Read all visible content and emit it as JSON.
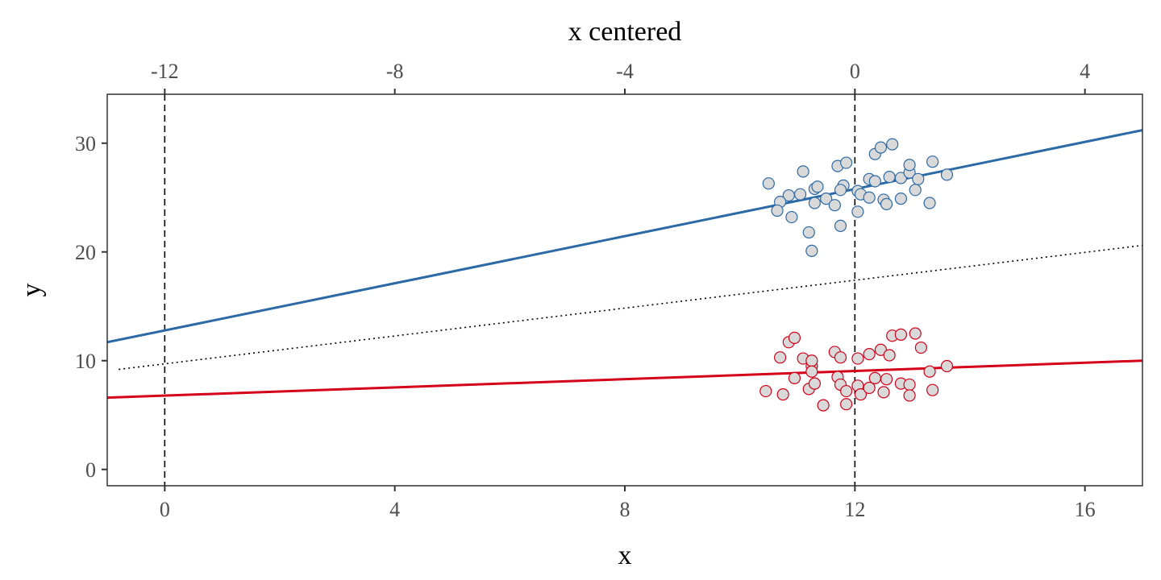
{
  "chart_data": {
    "type": "scatter",
    "title": "",
    "xlabel": "x",
    "ylabel": "y",
    "x2label": "x centered",
    "xlim": [
      -1,
      17
    ],
    "ylim": [
      -1.5,
      34.5
    ],
    "x_ticks": [
      0,
      4,
      8,
      12,
      16
    ],
    "x_tick_labels": [
      "0",
      "4",
      "8",
      "12",
      "16"
    ],
    "y_ticks": [
      0,
      10,
      20,
      30
    ],
    "y_tick_labels": [
      "0",
      "10",
      "20",
      "30"
    ],
    "x2_ticks": [
      -12,
      -8,
      -4,
      0,
      4
    ],
    "x2_tick_labels": [
      "-12",
      "-8",
      "-4",
      "0",
      "4"
    ],
    "x2_offset": 12,
    "grid": false,
    "legend": "none",
    "vlines": [
      0,
      12
    ],
    "colors": {
      "blue": "#2c6aa6",
      "red": "#d4001a",
      "point_fill": "#d9d9d9",
      "reference": "#000000",
      "panel_border": "#333333"
    },
    "lines": [
      {
        "style": "solid",
        "color": "blue",
        "x": [
          -1,
          17
        ],
        "y": [
          11.7,
          31.2
        ]
      },
      {
        "style": "dotted",
        "color": "reference",
        "x": [
          -0.8,
          17
        ],
        "y": [
          9.2,
          20.6
        ]
      },
      {
        "style": "solid",
        "color": "red",
        "x": [
          -1,
          17
        ],
        "y": [
          6.6,
          10.0
        ]
      }
    ],
    "series": [
      {
        "color": "blue",
        "points": [
          [
            10.5,
            26.3
          ],
          [
            10.85,
            25.2
          ],
          [
            10.7,
            24.6
          ],
          [
            10.9,
            23.2
          ],
          [
            10.65,
            23.8
          ],
          [
            11.1,
            27.4
          ],
          [
            11.2,
            21.8
          ],
          [
            11.05,
            25.3
          ],
          [
            11.25,
            20.1
          ],
          [
            11.3,
            25.8
          ],
          [
            11.35,
            26.0
          ],
          [
            11.3,
            24.5
          ],
          [
            11.5,
            24.9
          ],
          [
            11.65,
            24.3
          ],
          [
            11.7,
            27.9
          ],
          [
            11.85,
            28.2
          ],
          [
            11.8,
            26.1
          ],
          [
            11.75,
            25.7
          ],
          [
            11.75,
            22.4
          ],
          [
            12.05,
            23.7
          ],
          [
            12.05,
            25.6
          ],
          [
            12.1,
            25.3
          ],
          [
            12.25,
            26.7
          ],
          [
            12.25,
            25.0
          ],
          [
            12.35,
            29.0
          ],
          [
            12.35,
            26.5
          ],
          [
            12.45,
            29.6
          ],
          [
            12.5,
            24.8
          ],
          [
            12.55,
            24.4
          ],
          [
            12.6,
            26.9
          ],
          [
            12.65,
            29.9
          ],
          [
            12.8,
            26.8
          ],
          [
            12.8,
            24.9
          ],
          [
            12.95,
            27.3
          ],
          [
            12.95,
            28.0
          ],
          [
            13.05,
            25.7
          ],
          [
            13.1,
            26.7
          ],
          [
            13.3,
            24.5
          ],
          [
            13.35,
            28.3
          ],
          [
            13.6,
            27.1
          ]
        ]
      },
      {
        "color": "red",
        "points": [
          [
            10.45,
            7.2
          ],
          [
            10.75,
            6.9
          ],
          [
            10.7,
            10.3
          ],
          [
            10.85,
            11.7
          ],
          [
            10.95,
            12.1
          ],
          [
            10.95,
            8.4
          ],
          [
            11.1,
            10.2
          ],
          [
            11.2,
            7.4
          ],
          [
            11.25,
            9.5
          ],
          [
            11.25,
            10.0
          ],
          [
            11.25,
            9.0
          ],
          [
            11.3,
            7.9
          ],
          [
            11.45,
            5.9
          ],
          [
            11.65,
            10.8
          ],
          [
            11.7,
            8.5
          ],
          [
            11.75,
            10.3
          ],
          [
            11.75,
            7.8
          ],
          [
            11.85,
            7.2
          ],
          [
            11.85,
            6.0
          ],
          [
            12.05,
            10.2
          ],
          [
            12.05,
            7.7
          ],
          [
            12.1,
            6.9
          ],
          [
            12.25,
            10.6
          ],
          [
            12.25,
            7.5
          ],
          [
            12.35,
            8.4
          ],
          [
            12.45,
            11.0
          ],
          [
            12.5,
            7.1
          ],
          [
            12.55,
            8.3
          ],
          [
            12.6,
            10.5
          ],
          [
            12.65,
            12.3
          ],
          [
            12.8,
            12.4
          ],
          [
            12.8,
            7.9
          ],
          [
            12.95,
            7.8
          ],
          [
            12.95,
            6.8
          ],
          [
            13.05,
            12.5
          ],
          [
            13.15,
            11.2
          ],
          [
            13.3,
            9.0
          ],
          [
            13.35,
            7.3
          ],
          [
            13.6,
            9.5
          ]
        ]
      }
    ]
  }
}
